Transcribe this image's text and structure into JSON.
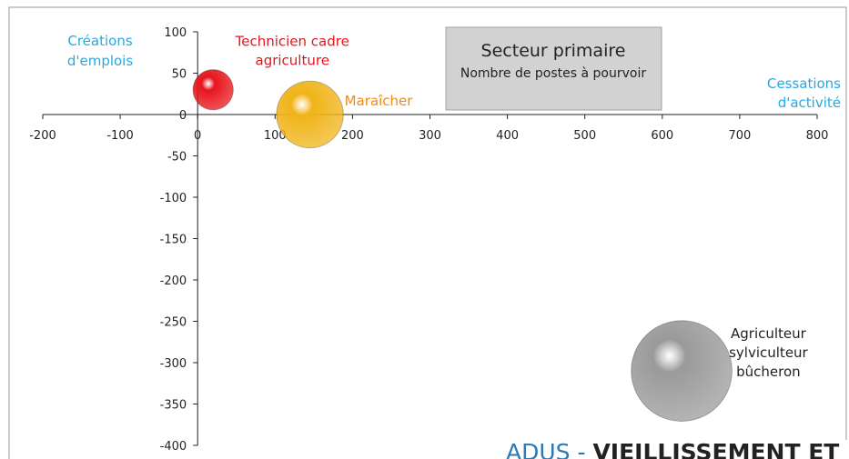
{
  "chart_data": {
    "type": "bubble",
    "title": [
      "Secteur primaire",
      "Nombre de postes à pourvoir"
    ],
    "annotations": [
      [
        "Créations",
        "d'emplois"
      ],
      [
        "Cessations",
        "d'activité"
      ]
    ],
    "series": [
      {
        "name": [
          "Technicien cadre",
          "agriculture"
        ],
        "color": "#e8141c",
        "x": [
          20
        ],
        "y": [
          30
        ],
        "size": [
          40
        ]
      },
      {
        "name": [
          "Maraîcher"
        ],
        "color": "#f0b418",
        "x": [
          145
        ],
        "y": [
          0
        ],
        "size": [
          110
        ]
      },
      {
        "name": [
          "Agriculteur",
          "sylviculteur",
          "bûcheron"
        ],
        "color": "#9a9a9a",
        "x": [
          625
        ],
        "y": [
          -310
        ],
        "size": [
          250
        ]
      }
    ],
    "xlim": [
      -200,
      800
    ],
    "xticks": [
      -200,
      -100,
      0,
      100,
      200,
      300,
      400,
      500,
      600,
      700,
      800
    ],
    "ylim": [
      -400,
      100
    ],
    "yticks": [
      100,
      50,
      0,
      -50,
      -100,
      -150,
      -200,
      -250,
      -300,
      -350,
      -400
    ],
    "footer": [
      "ADUS - ",
      "VIEILLISSEMENT ET"
    ]
  }
}
